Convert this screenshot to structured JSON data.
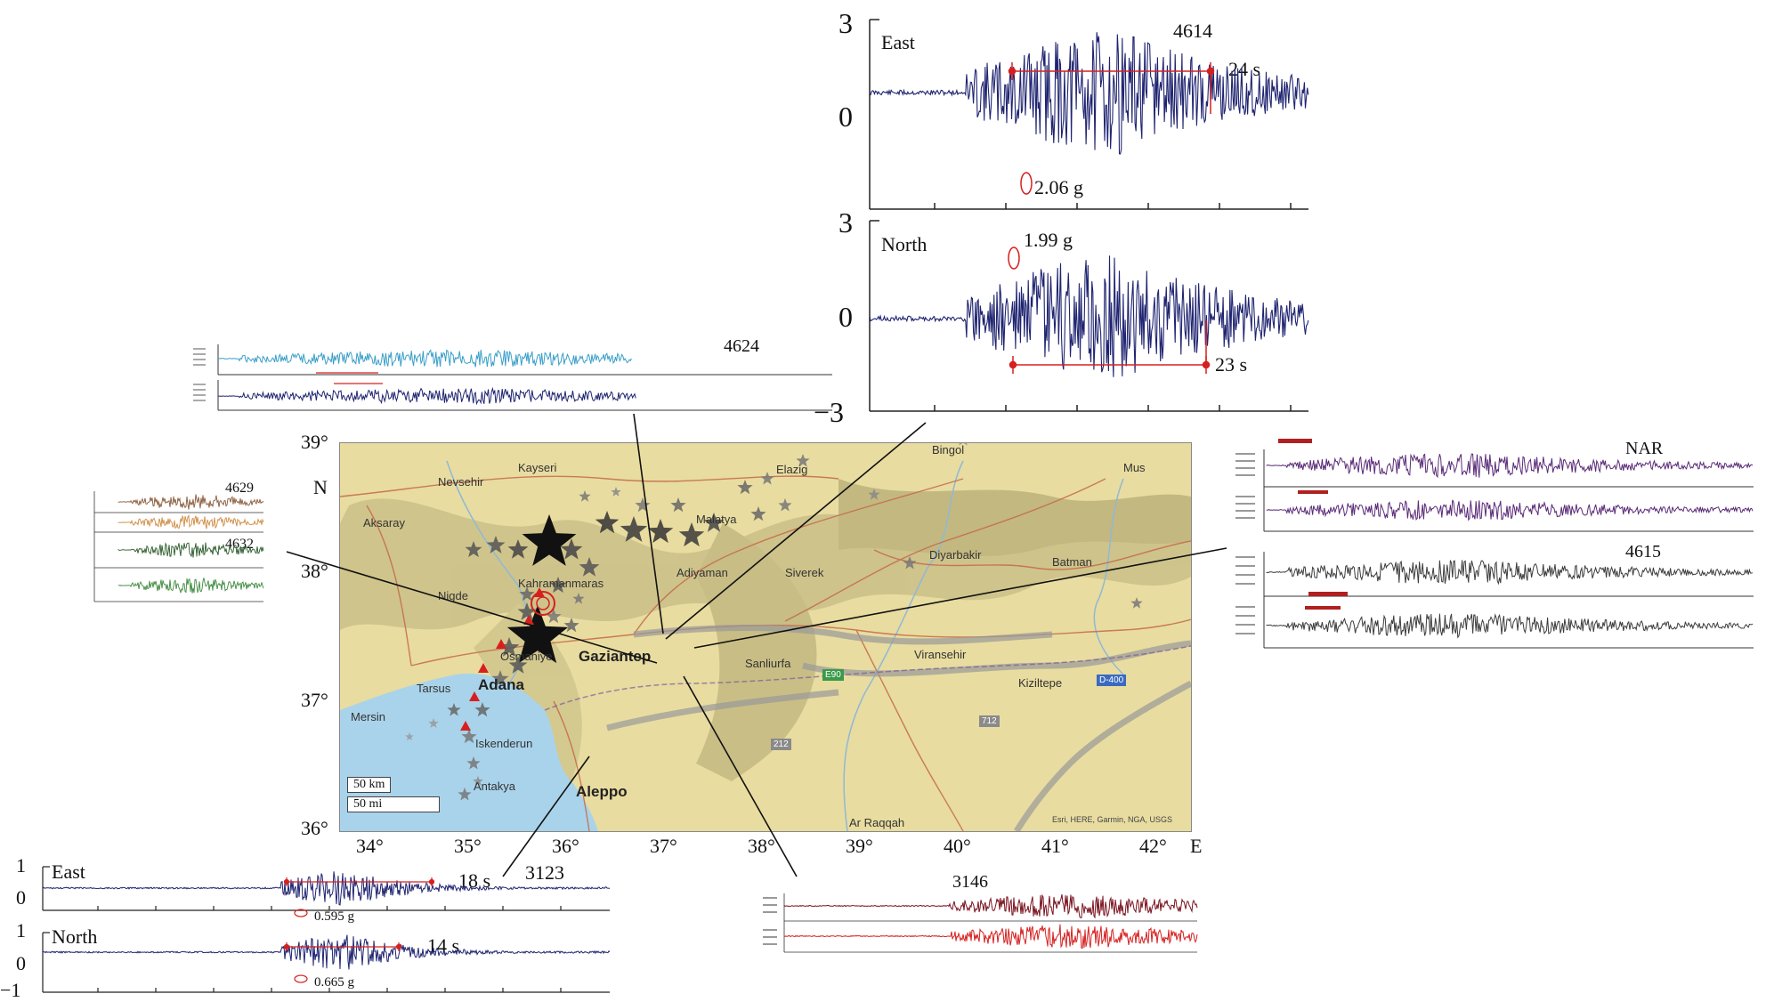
{
  "map": {
    "lat_labels": [
      "39°",
      "38°",
      "37°",
      "36°"
    ],
    "lon_labels": [
      "34°",
      "35°",
      "36°",
      "37°",
      "38°",
      "39°",
      "40°",
      "41°",
      "42°"
    ],
    "north_label": "N",
    "east_label": "E",
    "cities": [
      {
        "name": "Kayseri",
        "major": false
      },
      {
        "name": "Nevsehir",
        "major": false
      },
      {
        "name": "Aksaray",
        "major": false
      },
      {
        "name": "Nigde",
        "major": false
      },
      {
        "name": "Tarsus",
        "major": false
      },
      {
        "name": "Mersin",
        "major": false
      },
      {
        "name": "Adana",
        "major": true
      },
      {
        "name": "Osmaniye",
        "major": false
      },
      {
        "name": "Kahramanmaras",
        "major": false
      },
      {
        "name": "Gaziantep",
        "major": true
      },
      {
        "name": "Iskenderun",
        "major": false
      },
      {
        "name": "Antakya",
        "major": false
      },
      {
        "name": "Aleppo",
        "major": true
      },
      {
        "name": "Malatya",
        "major": false
      },
      {
        "name": "Adiyaman",
        "major": false
      },
      {
        "name": "Elazig",
        "major": false
      },
      {
        "name": "Bingol",
        "major": false
      },
      {
        "name": "Mus",
        "major": false
      },
      {
        "name": "Siverek",
        "major": false
      },
      {
        "name": "Diyarbakir",
        "major": false
      },
      {
        "name": "Batman",
        "major": false
      },
      {
        "name": "Sanliurfa",
        "major": false
      },
      {
        "name": "Viransehir",
        "major": false
      },
      {
        "name": "Kiziltepe",
        "major": false
      },
      {
        "name": "Ar Raqqah",
        "major": false
      }
    ],
    "roads": [
      "E90",
      "712",
      "212",
      "D-400"
    ],
    "scale_km": "50 km",
    "scale_mi": "50 mi",
    "attribution": "Esri, HERE, Garmin, NGA, USGS"
  },
  "station_4614": {
    "id": "4614",
    "east": {
      "component": "East",
      "y_top": "3",
      "y_mid": "0",
      "peak": "2.06 g",
      "duration": "24 s"
    },
    "north": {
      "component": "North",
      "y_top": "3",
      "y_mid": "0",
      "y_bottom": "−3",
      "peak": "1.99 g",
      "duration": "23 s"
    }
  },
  "station_3123": {
    "id": "3123",
    "east": {
      "component": "East",
      "y_top": "1",
      "y_mid": "0",
      "peak": "0.595 g",
      "duration": "18 s"
    },
    "north": {
      "component": "North",
      "y_top": "1",
      "y_mid": "0",
      "y_bottom": "−1",
      "peak": "0.665 g",
      "duration": "14 s"
    }
  },
  "station_labels": {
    "s4624": "4624",
    "s4629": "4629",
    "s4632": "4632",
    "sNAR": "NAR",
    "s4615": "4615",
    "s3146": "3146"
  },
  "colors": {
    "trace_navy": "#1f2470",
    "trace_cyan": "#3a9fc8",
    "trace_purple": "#5a2a78",
    "trace_gray": "#3c3c3c",
    "trace_brown": "#8a5a3a",
    "trace_orange": "#d08a40",
    "trace_green": "#3f8a3f",
    "trace_darkgreen": "#2b5a2b",
    "trace_maroon": "#7a1420",
    "trace_red": "#d62020",
    "annot_red": "#d62020",
    "map_land": "#e8dca0",
    "map_sea": "#a9d3ea"
  }
}
